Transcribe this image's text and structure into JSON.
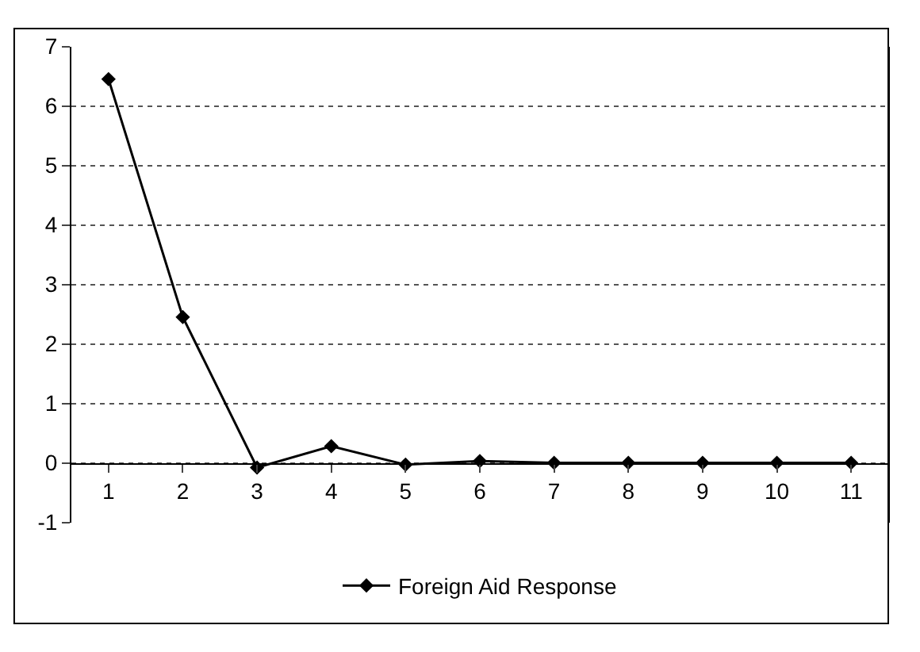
{
  "chart_data": {
    "type": "line",
    "categories": [
      "1",
      "2",
      "3",
      "4",
      "5",
      "6",
      "7",
      "8",
      "9",
      "10",
      "11"
    ],
    "series": [
      {
        "name": "Foreign Aid Response",
        "color": "#000000",
        "values": [
          6.45,
          2.45,
          -0.08,
          0.28,
          -0.03,
          0.03,
          0,
          0,
          0,
          0,
          0
        ]
      }
    ],
    "ylim": [
      -1,
      7
    ],
    "yticks": [
      -1,
      0,
      1,
      2,
      3,
      4,
      5,
      6,
      7
    ],
    "grid": "y",
    "legend": "bottom",
    "marker": "diamond",
    "line_style": "solid"
  }
}
